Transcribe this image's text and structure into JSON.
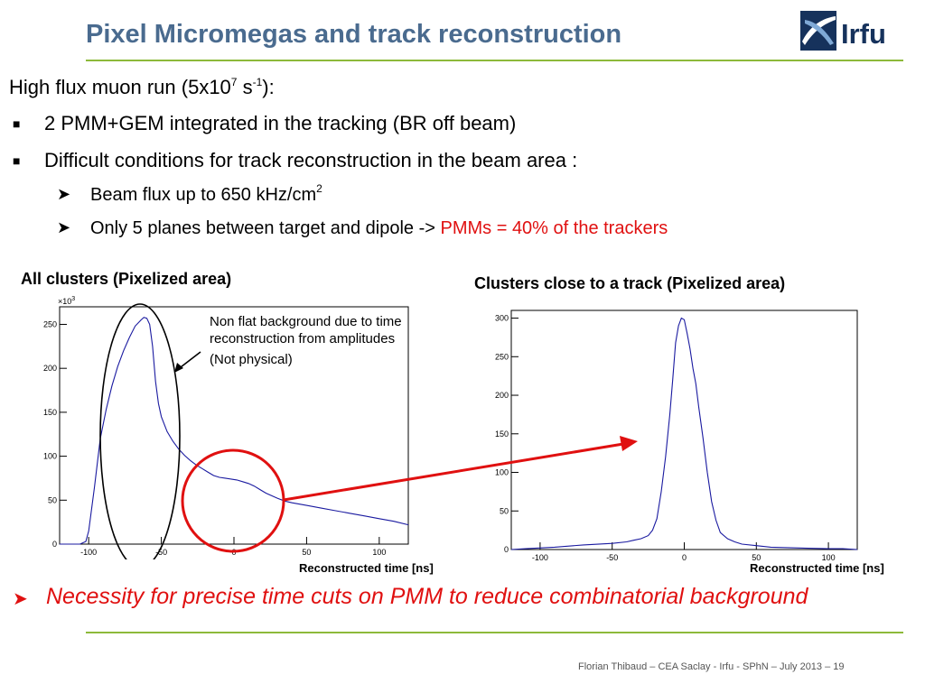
{
  "slide": {
    "title": "Pixel Micromegas and track reconstruction",
    "intro_prefix": "High flux muon run (5x10",
    "intro_sup1": "7",
    "intro_mid": " s",
    "intro_sup2": "-1",
    "intro_suffix": "):",
    "bullets": [
      "2 PMM+GEM integrated in the tracking (BR off beam)",
      "Difficult conditions for track reconstruction in the beam area :"
    ],
    "sub_bullets": {
      "flux_prefix": "Beam flux up to 650 kHz/cm",
      "flux_sup": "2",
      "planes_prefix": "Only 5 planes between target and dipole -> ",
      "planes_highlight": "PMMs = 40% of the trackers"
    },
    "left_caption": "All clusters (Pixelized area)",
    "right_caption": "Clusters close to a track (Pixelized area)",
    "annotation_lines": [
      "Non flat background due to time reconstruction from amplitudes",
      "(Not physical)"
    ],
    "conclusion": "Necessity for precise time cuts on PMM to reduce combinatorial background",
    "footer": "Florian Thibaud  –  CEA Saclay - Irfu - SPhN  –  July 2013 – 19",
    "logo_text": "Irfu",
    "colors": {
      "title": "#4a6b8f",
      "rule": "#8db93a",
      "highlight": "#e01010",
      "histogram": "#1a1aa0"
    }
  },
  "chart_data": [
    {
      "type": "line",
      "title": "All clusters (Pixelized area)",
      "xlabel": "Reconstructed time [ns]",
      "ylabel": "",
      "y_multiplier": "×10",
      "y_multiplier_exp": "3",
      "xlim": [
        -120,
        120
      ],
      "ylim": [
        0,
        270
      ],
      "xticks": [
        "-100",
        "-50",
        "0",
        "50",
        "100"
      ],
      "xtick_values": [
        -100,
        -50,
        0,
        50,
        100
      ],
      "yticks": [
        "0",
        "50",
        "100",
        "150",
        "200",
        "250"
      ],
      "ytick_values": [
        0,
        50,
        100,
        150,
        200,
        250
      ],
      "grid": false,
      "x": [
        -120,
        -106,
        -102,
        -100,
        -96,
        -92,
        -88,
        -84,
        -80,
        -76,
        -72,
        -68,
        -64,
        -62,
        -60,
        -58,
        -56,
        -54,
        -52,
        -50,
        -46,
        -42,
        -38,
        -34,
        -30,
        -26,
        -22,
        -18,
        -14,
        -10,
        -6,
        -2,
        2,
        6,
        10,
        14,
        18,
        22,
        26,
        30,
        35,
        40,
        50,
        60,
        70,
        80,
        90,
        100,
        110,
        120
      ],
      "y": [
        0,
        0,
        3,
        15,
        65,
        120,
        153,
        180,
        202,
        220,
        235,
        248,
        255,
        258,
        257,
        250,
        225,
        185,
        160,
        145,
        128,
        117,
        108,
        101,
        95,
        90,
        86,
        82,
        78,
        76,
        75,
        74,
        73,
        71,
        69,
        66,
        62,
        58,
        55,
        52,
        49,
        47,
        44,
        41,
        38,
        35,
        32,
        29,
        26,
        22
      ]
    },
    {
      "type": "line",
      "title": "Clusters close to a track (Pixelized area)",
      "xlabel": "Reconstructed time [ns]",
      "ylabel": "",
      "xlim": [
        -120,
        120
      ],
      "ylim": [
        0,
        310
      ],
      "xticks": [
        "-100",
        "-50",
        "0",
        "50",
        "100"
      ],
      "xtick_values": [
        -100,
        -50,
        0,
        50,
        100
      ],
      "yticks": [
        "0",
        "50",
        "100",
        "150",
        "200",
        "250",
        "300"
      ],
      "ytick_values": [
        0,
        50,
        100,
        150,
        200,
        250,
        300
      ],
      "grid": false,
      "x": [
        -120,
        -110,
        -90,
        -70,
        -50,
        -40,
        -35,
        -30,
        -25,
        -22,
        -19,
        -16,
        -13,
        -10,
        -8,
        -6,
        -4,
        -2,
        0,
        2,
        4,
        6,
        8,
        10,
        13,
        16,
        19,
        22,
        25,
        30,
        35,
        40,
        50,
        60,
        80,
        100,
        110,
        120
      ],
      "y": [
        0,
        1,
        3,
        6,
        8,
        10,
        12,
        14,
        18,
        25,
        40,
        75,
        120,
        175,
        220,
        268,
        290,
        300,
        298,
        280,
        260,
        235,
        215,
        185,
        145,
        100,
        62,
        38,
        22,
        14,
        10,
        7,
        5,
        3,
        2,
        1,
        1,
        0
      ]
    }
  ]
}
